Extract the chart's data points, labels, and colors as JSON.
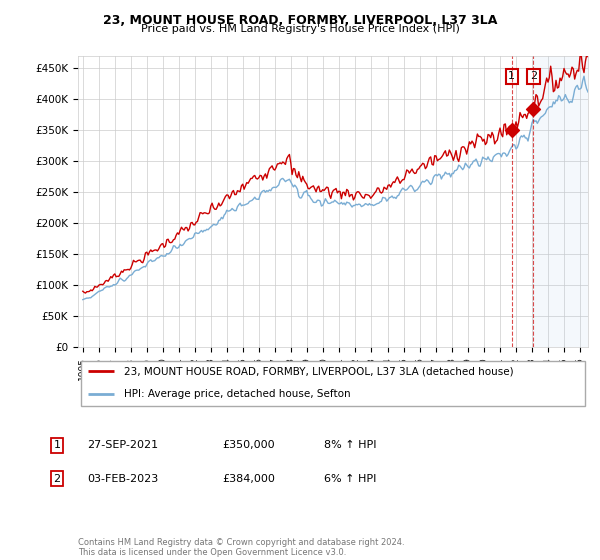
{
  "title": "23, MOUNT HOUSE ROAD, FORMBY, LIVERPOOL, L37 3LA",
  "subtitle": "Price paid vs. HM Land Registry's House Price Index (HPI)",
  "ylim": [
    0,
    470000
  ],
  "yticks": [
    0,
    50000,
    100000,
    150000,
    200000,
    250000,
    300000,
    350000,
    400000,
    450000
  ],
  "ytick_labels": [
    "£0",
    "£50K",
    "£100K",
    "£150K",
    "£200K",
    "£250K",
    "£300K",
    "£350K",
    "£400K",
    "£450K"
  ],
  "hpi_color": "#7aadd4",
  "price_color": "#cc0000",
  "sale1_year": 2021.75,
  "sale1_price": 350000,
  "sale1_date": "27-SEP-2021",
  "sale1_pct": "8%",
  "sale2_year": 2023.083,
  "sale2_price": 384000,
  "sale2_date": "03-FEB-2023",
  "sale2_pct": "6%",
  "legend_label1": "23, MOUNT HOUSE ROAD, FORMBY, LIVERPOOL, L37 3LA (detached house)",
  "legend_label2": "HPI: Average price, detached house, Sefton",
  "footer": "Contains HM Land Registry data © Crown copyright and database right 2024.\nThis data is licensed under the Open Government Licence v3.0.",
  "x_start_year": 1995,
  "x_end_year": 2026
}
